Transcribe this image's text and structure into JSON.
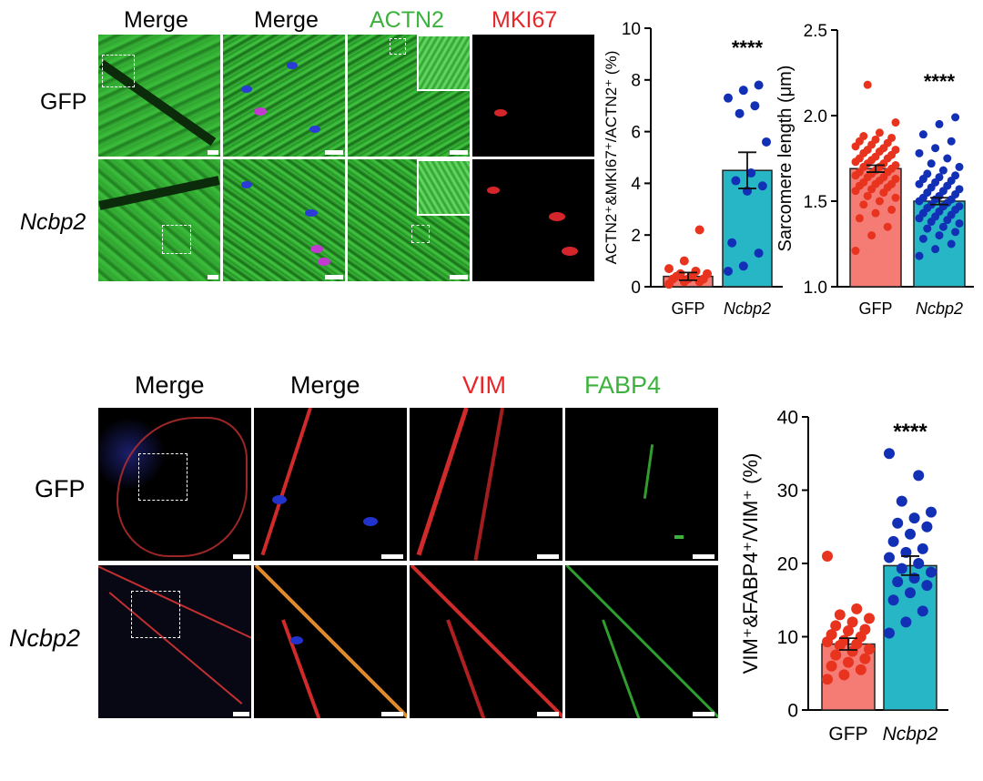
{
  "top": {
    "headers": [
      "Merge",
      "Merge",
      "ACTN2",
      "MKI67"
    ],
    "rows": [
      "GFP",
      "Ncbp2"
    ]
  },
  "bottom": {
    "headers": [
      "Merge",
      "Merge",
      "VIM",
      "FABP4"
    ],
    "rows": [
      "GFP",
      "Ncbp2"
    ]
  },
  "colors": {
    "gfp_fill": "#f47c74",
    "gfp_dots": "#e8331e",
    "ncbp2_fill": "#27b6c6",
    "ncbp2_dots": "#1230b5",
    "actn2": "#3cb23c",
    "mki67": "#e8262a"
  },
  "chart_data": [
    {
      "type": "bar",
      "categories": [
        "GFP",
        "Ncbp2"
      ],
      "values": [
        0.4,
        4.5
      ],
      "errors": [
        0.15,
        0.7
      ],
      "ylabel": "ACTN2⁺&MKI67⁺/ACTN2⁺ (%)",
      "ylim": [
        0,
        10
      ],
      "yticks": [
        0,
        2,
        4,
        6,
        8,
        10
      ],
      "significance": "****",
      "points": [
        [
          0.1,
          0.2,
          0.2,
          0.3,
          0.3,
          0.3,
          0.4,
          0.4,
          0.5,
          0.5,
          0.6,
          0.7,
          1.0,
          2.2
        ],
        [
          0.6,
          0.8,
          1.3,
          1.7,
          3.7,
          3.9,
          4.1,
          4.4,
          5.6,
          6.7,
          7.0,
          7.3,
          7.6,
          7.8
        ]
      ]
    },
    {
      "type": "bar",
      "categories": [
        "GFP",
        "Ncbp2"
      ],
      "values": [
        1.69,
        1.5
      ],
      "errors": [
        0.02,
        0.02
      ],
      "ylabel": "Sarcomere length (μm)",
      "ylim": [
        1.0,
        2.5
      ],
      "yticks": [
        "1.0",
        "1.5",
        "2.0",
        "2.5"
      ],
      "significance": "****",
      "points": [
        [
          1.21,
          1.3,
          1.35,
          1.4,
          1.43,
          1.45,
          1.48,
          1.5,
          1.52,
          1.53,
          1.55,
          1.56,
          1.57,
          1.58,
          1.59,
          1.6,
          1.6,
          1.61,
          1.62,
          1.63,
          1.64,
          1.64,
          1.65,
          1.66,
          1.67,
          1.67,
          1.68,
          1.69,
          1.7,
          1.7,
          1.71,
          1.72,
          1.72,
          1.73,
          1.74,
          1.75,
          1.75,
          1.76,
          1.77,
          1.78,
          1.79,
          1.8,
          1.8,
          1.81,
          1.82,
          1.83,
          1.84,
          1.85,
          1.86,
          1.87,
          1.88,
          1.9,
          1.96,
          2.18
        ],
        [
          1.18,
          1.22,
          1.25,
          1.28,
          1.3,
          1.32,
          1.34,
          1.35,
          1.37,
          1.38,
          1.39,
          1.4,
          1.41,
          1.42,
          1.43,
          1.44,
          1.45,
          1.46,
          1.47,
          1.47,
          1.48,
          1.49,
          1.5,
          1.51,
          1.51,
          1.52,
          1.53,
          1.54,
          1.55,
          1.56,
          1.57,
          1.58,
          1.59,
          1.6,
          1.61,
          1.62,
          1.63,
          1.64,
          1.65,
          1.66,
          1.68,
          1.7,
          1.72,
          1.75,
          1.78,
          1.81,
          1.85,
          1.89,
          1.95,
          1.99
        ]
      ]
    },
    {
      "type": "bar",
      "categories": [
        "GFP",
        "Ncbp2"
      ],
      "values": [
        9.0,
        19.7
      ],
      "errors": [
        0.8,
        1.3
      ],
      "ylabel": "VIM⁺&FABP4⁺/VIM⁺ (%)",
      "ylim": [
        0,
        40
      ],
      "yticks": [
        0,
        10,
        20,
        30,
        40
      ],
      "significance": "****",
      "points": [
        [
          4.2,
          4.8,
          5.5,
          6.0,
          6.5,
          7.0,
          7.5,
          8.0,
          8.3,
          8.8,
          9.0,
          9.3,
          9.5,
          10.0,
          10.3,
          10.8,
          11.0,
          11.5,
          12.0,
          12.5,
          13.0,
          13.8,
          21.0
        ],
        [
          10.5,
          12.0,
          13.5,
          15.0,
          16.0,
          17.0,
          17.5,
          18.0,
          18.8,
          19.3,
          20.0,
          20.8,
          21.5,
          22.0,
          23.0,
          24.0,
          25.0,
          25.5,
          26.2,
          27.0,
          28.5,
          32.0,
          35.0
        ]
      ]
    }
  ]
}
